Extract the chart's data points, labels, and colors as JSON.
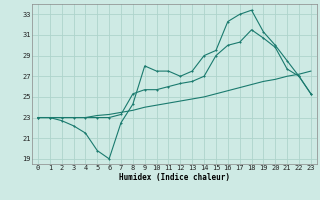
{
  "xlabel": "Humidex (Indice chaleur)",
  "ylabel": "",
  "bg_color": "#ceeae4",
  "line_color": "#1a7a6e",
  "grid_color": "#aed4cc",
  "xlim": [
    -0.5,
    23.5
  ],
  "ylim": [
    18.5,
    34.0
  ],
  "xticks": [
    0,
    1,
    2,
    3,
    4,
    5,
    6,
    7,
    8,
    9,
    10,
    11,
    12,
    13,
    14,
    15,
    16,
    17,
    18,
    19,
    20,
    21,
    22,
    23
  ],
  "yticks": [
    19,
    21,
    23,
    25,
    27,
    29,
    31,
    33
  ],
  "line1_x": [
    0,
    1,
    2,
    3,
    4,
    5,
    6,
    7,
    8,
    9,
    10,
    11,
    12,
    13,
    14,
    15,
    16,
    17,
    18,
    19,
    20,
    21,
    22,
    23
  ],
  "line1_y": [
    23,
    23,
    22.7,
    22.2,
    21.5,
    19.8,
    19.0,
    22.5,
    24.3,
    28.0,
    27.5,
    27.5,
    27.0,
    27.5,
    29.0,
    29.5,
    32.3,
    33.0,
    33.4,
    31.3,
    30.0,
    28.5,
    27.0,
    25.3
  ],
  "line2_x": [
    0,
    1,
    2,
    3,
    4,
    5,
    6,
    7,
    8,
    9,
    10,
    11,
    12,
    13,
    14,
    15,
    16,
    17,
    18,
    19,
    20,
    21,
    22,
    23
  ],
  "line2_y": [
    23.0,
    23.0,
    23.0,
    23.0,
    23.0,
    23.2,
    23.3,
    23.5,
    23.7,
    24.0,
    24.2,
    24.4,
    24.6,
    24.8,
    25.0,
    25.3,
    25.6,
    25.9,
    26.2,
    26.5,
    26.7,
    27.0,
    27.2,
    27.5
  ],
  "line3_x": [
    0,
    1,
    2,
    3,
    4,
    5,
    6,
    7,
    8,
    9,
    10,
    11,
    12,
    13,
    14,
    15,
    16,
    17,
    18,
    19,
    20,
    21,
    22,
    23
  ],
  "line3_y": [
    23.0,
    23.0,
    23.0,
    23.0,
    23.0,
    23.0,
    23.0,
    23.3,
    25.3,
    25.7,
    25.7,
    26.0,
    26.3,
    26.5,
    27.0,
    29.0,
    30.0,
    30.3,
    31.5,
    30.7,
    29.8,
    27.7,
    27.0,
    25.3
  ]
}
